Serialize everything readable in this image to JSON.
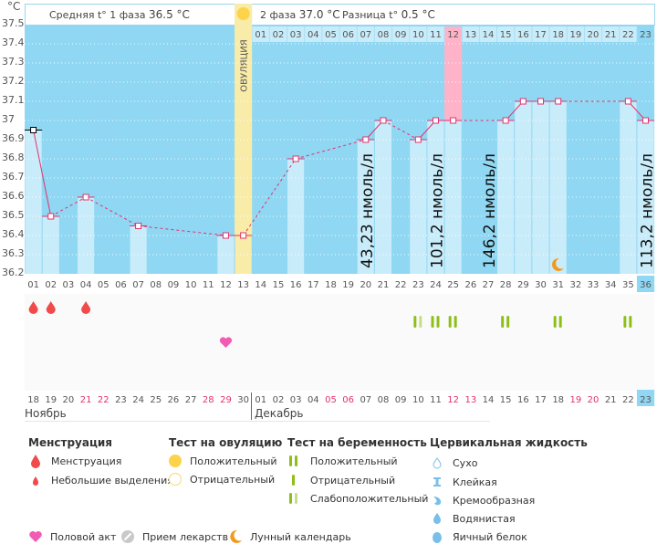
{
  "header": {
    "unit": "°C",
    "phase1_label": "Средняя t° 1 фаза",
    "phase1_value": "36.5 °C",
    "phase2_label": "2 фаза",
    "phase2_value": "37.0 °C",
    "diff_label": "Разница t°",
    "diff_value": "0.5 °C"
  },
  "ovulation_label": "ОВУЛЯЦИЯ",
  "colors": {
    "plot_bg": "#8fd7f2",
    "bar": "#c9ecfa",
    "ovulation": "#f9eba8",
    "highlight_pink": "#ffb3c8",
    "line": "#e2336d",
    "weekend": "#e0336b",
    "preg_positive": "#8dbf17",
    "preg_faint": "#c6de8a",
    "today": "#8fd7f2"
  },
  "chart_data": {
    "type": "line",
    "title": "",
    "xlabel": "",
    "ylabel": "°C",
    "ylim": [
      36.2,
      37.5
    ],
    "yticks": [
      "37.5",
      "37.4",
      "37.3",
      "37.2",
      "37.1",
      "37",
      "36.9",
      "36.8",
      "36.7",
      "36.6",
      "36.5",
      "36.4",
      "36.3",
      "36.2"
    ],
    "cycle_days": [
      "01",
      "02",
      "03",
      "04",
      "05",
      "06",
      "07",
      "08",
      "09",
      "10",
      "11",
      "12",
      "13",
      "14",
      "15",
      "16",
      "17",
      "18",
      "19",
      "20",
      "21",
      "22",
      "23",
      "24",
      "25",
      "26",
      "27",
      "28",
      "29",
      "30",
      "31",
      "32",
      "33",
      "34",
      "35",
      "36"
    ],
    "dates": [
      "18",
      "19",
      "20",
      "21",
      "22",
      "23",
      "24",
      "25",
      "26",
      "27",
      "28",
      "29",
      "30",
      "01",
      "02",
      "03",
      "04",
      "05",
      "06",
      "07",
      "08",
      "09",
      "10",
      "11",
      "12",
      "13",
      "14",
      "15",
      "16",
      "17",
      "18",
      "19",
      "20",
      "21",
      "22",
      "23"
    ],
    "weekend_date_indices": [
      3,
      4,
      10,
      11,
      17,
      18,
      24,
      25,
      31,
      32
    ],
    "months": [
      {
        "label": "Ноябрь",
        "start_index": 0
      },
      {
        "label": "Декабрь",
        "start_index": 13
      }
    ],
    "top_days": [
      "01",
      "02",
      "03",
      "04",
      "05",
      "06",
      "07",
      "08",
      "09",
      "10",
      "11",
      "12",
      "13",
      "14",
      "15",
      "16",
      "17",
      "18",
      "19",
      "20",
      "21",
      "22",
      "23"
    ],
    "today_index": 35,
    "ovulation_index": 12,
    "pink_highlight_index": 24,
    "series": [
      {
        "name": "Температура",
        "points": [
          {
            "day": 1,
            "t": 36.95,
            "marker": "black"
          },
          {
            "day": 2,
            "t": 36.5
          },
          {
            "day": 4,
            "t": 36.6
          },
          {
            "day": 7,
            "t": 36.45
          },
          {
            "day": 12,
            "t": 36.4
          },
          {
            "day": 13,
            "t": 36.4
          },
          {
            "day": 16,
            "t": 36.8
          },
          {
            "day": 20,
            "t": 36.9
          },
          {
            "day": 21,
            "t": 37.0
          },
          {
            "day": 23,
            "t": 36.9
          },
          {
            "day": 24,
            "t": 37.0
          },
          {
            "day": 25,
            "t": 37.0
          },
          {
            "day": 28,
            "t": 37.0
          },
          {
            "day": 29,
            "t": 37.1
          },
          {
            "day": 30,
            "t": 37.1
          },
          {
            "day": 31,
            "t": 37.1
          },
          {
            "day": 35,
            "t": 37.1
          },
          {
            "day": 36,
            "t": 37.0
          }
        ]
      }
    ],
    "solid_segments": [
      [
        1,
        2
      ],
      [
        20,
        21
      ],
      [
        23,
        24
      ],
      [
        24,
        25
      ],
      [
        28,
        29
      ],
      [
        29,
        30
      ],
      [
        30,
        31
      ],
      [
        35,
        36
      ]
    ],
    "annotations": [
      {
        "day": 20,
        "text": "43,23 нмоль/л"
      },
      {
        "day": 24,
        "text": "101,2 нмоль/л"
      },
      {
        "day": 27,
        "text": "146,2 нмоль/л"
      },
      {
        "day": 36,
        "text": "113,2 нмоль/л"
      }
    ],
    "moon_day": 31,
    "menstruation_days": [
      1,
      2,
      4
    ],
    "intercourse_days": [
      12
    ],
    "pregnancy_tests": [
      {
        "day": 23,
        "result": "faint"
      },
      {
        "day": 24,
        "result": "positive"
      },
      {
        "day": 25,
        "result": "positive"
      },
      {
        "day": 28,
        "result": "positive"
      },
      {
        "day": 31,
        "result": "positive"
      },
      {
        "day": 35,
        "result": "positive"
      }
    ]
  },
  "legend": {
    "menstruation": {
      "title": "Менструация",
      "items": [
        "Менструация",
        "Небольшие выделения"
      ]
    },
    "ovulation_test": {
      "title": "Тест на овуляцию",
      "items": [
        "Положительный",
        "Отрицательный"
      ]
    },
    "pregnancy_test": {
      "title": "Тест на беременность",
      "items": [
        "Положительный",
        "Отрицательный",
        "Слабоположительный"
      ]
    },
    "cervical": {
      "title": "Цервикальная жидкость",
      "items": [
        "Сухо",
        "Клейкая",
        "Кремообразная",
        "Водянистая",
        "Яичный белок"
      ]
    },
    "other": [
      "Половой акт",
      "Прием лекарств",
      "Лунный календарь"
    ]
  }
}
